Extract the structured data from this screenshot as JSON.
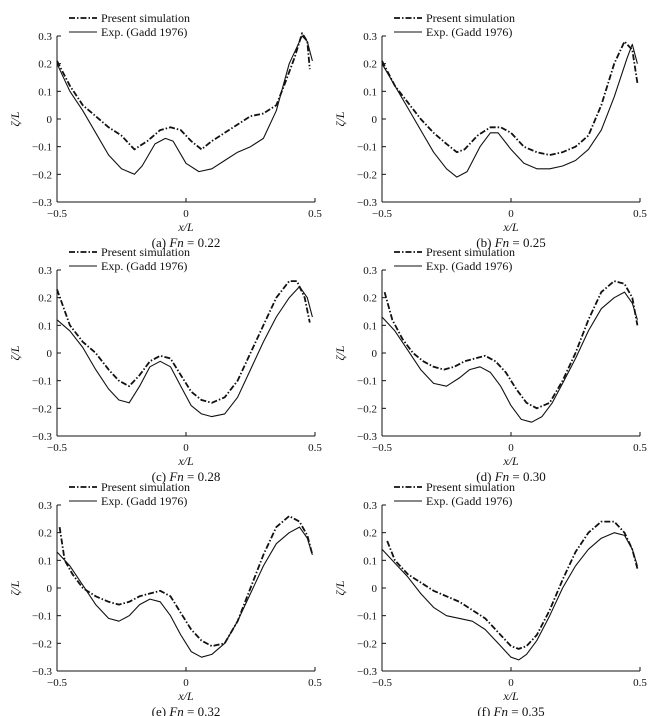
{
  "figure": {
    "xlabel": "x/L",
    "ylabel": "ζ/L"
  },
  "chart_data": [
    {
      "type": "line",
      "label": "(a)",
      "fn": "0.22",
      "xlim": [
        -0.5,
        0.5
      ],
      "ylim": [
        -0.3,
        0.3
      ],
      "xticks": [
        "-0.5",
        "0",
        "0.5"
      ],
      "yticks": [
        "-0.3",
        "-0.2",
        "-0.1",
        "0",
        "0.1",
        "0.2",
        "0.3"
      ],
      "series": [
        {
          "name": "Present simulation",
          "style": "dashdot",
          "x": [
            -0.5,
            -0.45,
            -0.4,
            -0.35,
            -0.3,
            -0.25,
            -0.22,
            -0.2,
            -0.15,
            -0.1,
            -0.06,
            -0.02,
            0.02,
            0.06,
            0.1,
            0.15,
            0.2,
            0.25,
            0.3,
            0.35,
            0.38,
            0.42,
            0.45,
            0.47,
            0.48
          ],
          "y": [
            0.21,
            0.12,
            0.05,
            0.01,
            -0.03,
            -0.06,
            -0.09,
            -0.11,
            -0.08,
            -0.04,
            -0.03,
            -0.04,
            -0.08,
            -0.11,
            -0.08,
            -0.05,
            -0.02,
            0.01,
            0.02,
            0.05,
            0.12,
            0.22,
            0.31,
            0.28,
            0.18
          ]
        },
        {
          "name": "Exp. (Gadd 1976)",
          "style": "solid",
          "x": [
            -0.5,
            -0.45,
            -0.4,
            -0.35,
            -0.3,
            -0.25,
            -0.2,
            -0.17,
            -0.12,
            -0.08,
            -0.05,
            0,
            0.05,
            0.1,
            0.15,
            0.2,
            0.25,
            0.3,
            0.35,
            0.4,
            0.45,
            0.47,
            0.49
          ],
          "y": [
            0.2,
            0.1,
            0.03,
            -0.05,
            -0.13,
            -0.18,
            -0.2,
            -0.17,
            -0.09,
            -0.07,
            -0.08,
            -0.16,
            -0.19,
            -0.18,
            -0.15,
            -0.12,
            -0.1,
            -0.07,
            0.03,
            0.2,
            0.3,
            0.28,
            0.21
          ]
        }
      ]
    },
    {
      "type": "line",
      "label": "(b)",
      "fn": "0.25",
      "xlim": [
        -0.5,
        0.5
      ],
      "ylim": [
        -0.3,
        0.3
      ],
      "xticks": [
        "-0.5",
        "0",
        "0.5"
      ],
      "yticks": [
        "-0.3",
        "-0.2",
        "-0.1",
        "0",
        "0.1",
        "0.2",
        "0.3"
      ],
      "series": [
        {
          "name": "Present simulation",
          "style": "dashdot",
          "x": [
            -0.5,
            -0.45,
            -0.4,
            -0.35,
            -0.3,
            -0.25,
            -0.21,
            -0.18,
            -0.13,
            -0.08,
            -0.04,
            0,
            0.05,
            0.1,
            0.15,
            0.2,
            0.25,
            0.3,
            0.35,
            0.4,
            0.44,
            0.47,
            0.49
          ],
          "y": [
            0.21,
            0.12,
            0.06,
            0.0,
            -0.05,
            -0.09,
            -0.12,
            -0.11,
            -0.06,
            -0.03,
            -0.03,
            -0.05,
            -0.1,
            -0.12,
            -0.13,
            -0.12,
            -0.1,
            -0.06,
            0.05,
            0.2,
            0.28,
            0.25,
            0.13
          ]
        },
        {
          "name": "Exp. (Gadd 1976)",
          "style": "solid",
          "x": [
            -0.5,
            -0.45,
            -0.4,
            -0.35,
            -0.3,
            -0.25,
            -0.21,
            -0.17,
            -0.12,
            -0.08,
            -0.05,
            0,
            0.05,
            0.1,
            0.15,
            0.2,
            0.25,
            0.3,
            0.35,
            0.4,
            0.45,
            0.47,
            0.49
          ],
          "y": [
            0.2,
            0.12,
            0.04,
            -0.04,
            -0.12,
            -0.18,
            -0.21,
            -0.19,
            -0.1,
            -0.05,
            -0.05,
            -0.11,
            -0.16,
            -0.18,
            -0.18,
            -0.17,
            -0.15,
            -0.11,
            -0.04,
            0.08,
            0.22,
            0.27,
            0.2
          ]
        }
      ]
    },
    {
      "type": "line",
      "label": "(c)",
      "fn": "0.28",
      "xlim": [
        -0.5,
        0.5
      ],
      "ylim": [
        -0.3,
        0.3
      ],
      "xticks": [
        "-0.5",
        "0",
        "0.5"
      ],
      "yticks": [
        "-0.3",
        "-0.2",
        "-0.1",
        "0",
        "0.1",
        "0.2",
        "0.3"
      ],
      "series": [
        {
          "name": "Present simulation",
          "style": "dashdot",
          "x": [
            -0.5,
            -0.45,
            -0.4,
            -0.35,
            -0.3,
            -0.26,
            -0.22,
            -0.18,
            -0.14,
            -0.1,
            -0.06,
            -0.02,
            0.02,
            0.06,
            0.1,
            0.15,
            0.2,
            0.25,
            0.3,
            0.35,
            0.4,
            0.43,
            0.46,
            0.48
          ],
          "y": [
            0.23,
            0.1,
            0.04,
            0.0,
            -0.06,
            -0.1,
            -0.12,
            -0.08,
            -0.03,
            -0.01,
            -0.02,
            -0.08,
            -0.14,
            -0.17,
            -0.18,
            -0.16,
            -0.1,
            0.0,
            0.1,
            0.2,
            0.26,
            0.26,
            0.2,
            0.11
          ]
        },
        {
          "name": "Exp. (Gadd 1976)",
          "style": "solid",
          "x": [
            -0.5,
            -0.45,
            -0.4,
            -0.35,
            -0.3,
            -0.26,
            -0.22,
            -0.18,
            -0.14,
            -0.1,
            -0.06,
            -0.02,
            0.02,
            0.06,
            0.1,
            0.15,
            0.2,
            0.25,
            0.3,
            0.35,
            0.4,
            0.44,
            0.47,
            0.49
          ],
          "y": [
            0.12,
            0.08,
            0.02,
            -0.06,
            -0.13,
            -0.17,
            -0.18,
            -0.12,
            -0.05,
            -0.03,
            -0.05,
            -0.12,
            -0.19,
            -0.22,
            -0.23,
            -0.22,
            -0.16,
            -0.06,
            0.04,
            0.13,
            0.2,
            0.24,
            0.2,
            0.13
          ]
        }
      ]
    },
    {
      "type": "line",
      "label": "(d)",
      "fn": "0.30",
      "xlim": [
        -0.5,
        0.5
      ],
      "ylim": [
        -0.3,
        0.3
      ],
      "xticks": [
        "-0.5",
        "0",
        "0.5"
      ],
      "yticks": [
        "-0.3",
        "-0.2",
        "-0.1",
        "0",
        "0.1",
        "0.2",
        "0.3"
      ],
      "series": [
        {
          "name": "Present simulation",
          "style": "dashdot",
          "x": [
            -0.49,
            -0.46,
            -0.42,
            -0.38,
            -0.34,
            -0.3,
            -0.26,
            -0.22,
            -0.18,
            -0.14,
            -0.1,
            -0.06,
            -0.02,
            0.02,
            0.06,
            0.1,
            0.15,
            0.2,
            0.25,
            0.3,
            0.35,
            0.4,
            0.44,
            0.47,
            0.49
          ],
          "y": [
            0.22,
            0.12,
            0.05,
            0.0,
            -0.03,
            -0.05,
            -0.06,
            -0.05,
            -0.03,
            -0.02,
            -0.01,
            -0.03,
            -0.07,
            -0.13,
            -0.18,
            -0.2,
            -0.18,
            -0.1,
            0.0,
            0.12,
            0.22,
            0.26,
            0.25,
            0.2,
            0.1
          ]
        },
        {
          "name": "Exp. (Gadd 1976)",
          "style": "solid",
          "x": [
            -0.5,
            -0.45,
            -0.4,
            -0.35,
            -0.3,
            -0.25,
            -0.2,
            -0.16,
            -0.12,
            -0.08,
            -0.04,
            0,
            0.04,
            0.08,
            0.12,
            0.16,
            0.2,
            0.25,
            0.3,
            0.35,
            0.4,
            0.44,
            0.47,
            0.49
          ],
          "y": [
            0.13,
            0.08,
            0.01,
            -0.06,
            -0.11,
            -0.12,
            -0.09,
            -0.06,
            -0.05,
            -0.07,
            -0.12,
            -0.19,
            -0.24,
            -0.25,
            -0.23,
            -0.18,
            -0.11,
            -0.02,
            0.08,
            0.16,
            0.2,
            0.22,
            0.18,
            0.12
          ]
        }
      ]
    },
    {
      "type": "line",
      "label": "(e)",
      "fn": "0.32",
      "xlim": [
        -0.5,
        0.5
      ],
      "ylim": [
        -0.3,
        0.3
      ],
      "xticks": [
        "-0.5",
        "0",
        "0.5"
      ],
      "yticks": [
        "-0.3",
        "-0.2",
        "-0.1",
        "0",
        "0.1",
        "0.2",
        "0.3"
      ],
      "series": [
        {
          "name": "Present simulation",
          "style": "dashdot",
          "x": [
            -0.49,
            -0.47,
            -0.44,
            -0.4,
            -0.35,
            -0.3,
            -0.26,
            -0.22,
            -0.18,
            -0.14,
            -0.1,
            -0.06,
            -0.02,
            0.02,
            0.06,
            0.1,
            0.15,
            0.2,
            0.25,
            0.3,
            0.35,
            0.4,
            0.44,
            0.47,
            0.49
          ],
          "y": [
            0.22,
            0.1,
            0.05,
            0.0,
            -0.03,
            -0.05,
            -0.06,
            -0.05,
            -0.03,
            -0.02,
            -0.01,
            -0.03,
            -0.09,
            -0.15,
            -0.19,
            -0.21,
            -0.2,
            -0.12,
            0.0,
            0.12,
            0.22,
            0.26,
            0.24,
            0.19,
            0.12
          ]
        },
        {
          "name": "Exp. (Gadd 1976)",
          "style": "solid",
          "x": [
            -0.5,
            -0.45,
            -0.4,
            -0.35,
            -0.3,
            -0.26,
            -0.22,
            -0.18,
            -0.14,
            -0.1,
            -0.06,
            -0.02,
            0.02,
            0.06,
            0.1,
            0.15,
            0.2,
            0.25,
            0.3,
            0.35,
            0.4,
            0.44,
            0.47,
            0.49
          ],
          "y": [
            0.13,
            0.08,
            0.01,
            -0.06,
            -0.11,
            -0.12,
            -0.1,
            -0.06,
            -0.04,
            -0.05,
            -0.1,
            -0.17,
            -0.23,
            -0.25,
            -0.24,
            -0.2,
            -0.12,
            -0.02,
            0.08,
            0.16,
            0.2,
            0.22,
            0.18,
            0.12
          ]
        }
      ]
    },
    {
      "type": "line",
      "label": "(f)",
      "fn": "0.35",
      "xlim": [
        -0.5,
        0.5
      ],
      "ylim": [
        -0.3,
        0.3
      ],
      "xticks": [
        "-0.5",
        "0",
        "0.5"
      ],
      "yticks": [
        "-0.3",
        "-0.2",
        "-0.1",
        "0",
        "0.1",
        "0.2",
        "0.3"
      ],
      "series": [
        {
          "name": "Present simulation",
          "style": "dashdot",
          "x": [
            -0.48,
            -0.45,
            -0.4,
            -0.35,
            -0.3,
            -0.25,
            -0.2,
            -0.15,
            -0.1,
            -0.05,
            0,
            0.03,
            0.06,
            0.1,
            0.15,
            0.2,
            0.25,
            0.3,
            0.35,
            0.4,
            0.44,
            0.47,
            0.49
          ],
          "y": [
            0.17,
            0.1,
            0.05,
            0.02,
            -0.01,
            -0.03,
            -0.05,
            -0.08,
            -0.11,
            -0.16,
            -0.21,
            -0.22,
            -0.21,
            -0.17,
            -0.08,
            0.03,
            0.13,
            0.2,
            0.24,
            0.24,
            0.2,
            0.14,
            0.07
          ]
        },
        {
          "name": "Exp. (Gadd 1976)",
          "style": "solid",
          "x": [
            -0.5,
            -0.45,
            -0.4,
            -0.35,
            -0.3,
            -0.25,
            -0.2,
            -0.15,
            -0.1,
            -0.05,
            0,
            0.03,
            0.06,
            0.1,
            0.15,
            0.2,
            0.25,
            0.3,
            0.35,
            0.4,
            0.44,
            0.47,
            0.49
          ],
          "y": [
            0.14,
            0.09,
            0.04,
            -0.02,
            -0.07,
            -0.1,
            -0.11,
            -0.12,
            -0.15,
            -0.2,
            -0.25,
            -0.26,
            -0.24,
            -0.19,
            -0.1,
            0.0,
            0.08,
            0.14,
            0.18,
            0.2,
            0.19,
            0.14,
            0.08
          ]
        }
      ]
    }
  ]
}
